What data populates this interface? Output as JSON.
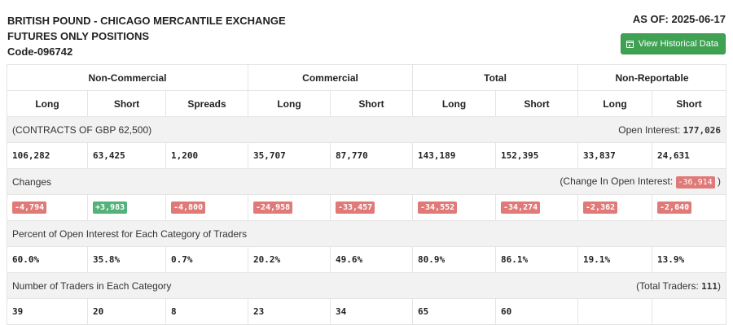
{
  "header": {
    "title_line1": "BRITISH POUND - CHICAGO MERCANTILE EXCHANGE",
    "title_line2": "FUTURES ONLY POSITIONS",
    "code": "Code-096742",
    "as_of": "AS OF: 2025-06-17",
    "historical_button": "View Historical Data"
  },
  "table": {
    "groups": [
      "Non-Commercial",
      "Commercial",
      "Total",
      "Non-Reportable"
    ],
    "columns": [
      "Long",
      "Short",
      "Spreads",
      "Long",
      "Short",
      "Long",
      "Short",
      "Long",
      "Short"
    ],
    "contracts_label": "(CONTRACTS OF GBP 62,500)",
    "open_interest_label": "Open Interest:",
    "open_interest_value": "177,026",
    "positions": [
      "106,282",
      "63,425",
      "1,200",
      "35,707",
      "87,770",
      "143,189",
      "152,395",
      "33,837",
      "24,631"
    ],
    "changes_label": "Changes",
    "change_oi_prefix": "(Change In Open Interest:",
    "change_oi_value": "-36,914",
    "change_oi_suffix": ")",
    "changes": [
      "-4,794",
      "+3,983",
      "-4,800",
      "-24,958",
      "-33,457",
      "-34,552",
      "-34,274",
      "-2,362",
      "-2,640"
    ],
    "percent_label": "Percent of Open Interest for Each Category of Traders",
    "percents": [
      "60.0%",
      "35.8%",
      "0.7%",
      "20.2%",
      "49.6%",
      "80.9%",
      "86.1%",
      "19.1%",
      "13.9%"
    ],
    "traders_label": "Number of Traders in Each Category",
    "total_traders_prefix": "(Total Traders:",
    "total_traders_value": "111",
    "total_traders_suffix": ")",
    "traders": [
      "39",
      "20",
      "8",
      "23",
      "34",
      "65",
      "60",
      "",
      ""
    ]
  },
  "colors": {
    "negative_badge": "#e07a78",
    "positive_badge": "#52b27a",
    "button_green": "#3fa152",
    "section_bg": "#f2f2f2"
  }
}
